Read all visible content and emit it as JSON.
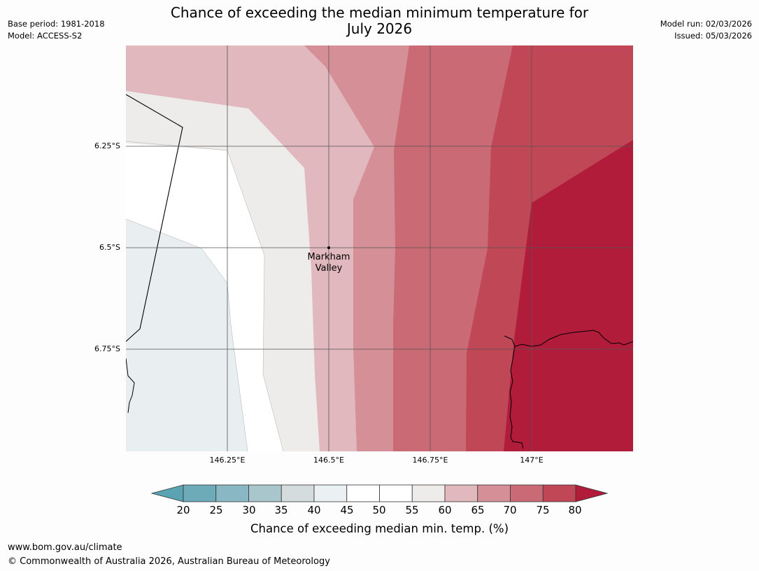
{
  "header": {
    "base_period": "Base period: 1981-2018",
    "model": "Model: ACCESS-S2",
    "title_line1": "Chance of exceeding the median minimum temperature for",
    "title_line2": "July 2026",
    "model_run": "Model run: 02/03/2026",
    "issued": "Issued: 05/03/2026"
  },
  "map": {
    "lat_labels": [
      "6.25°S",
      "6.5°S",
      "6.75°S"
    ],
    "lon_labels": [
      "146.25°E",
      "146.5°E",
      "146.75°E",
      "147°E"
    ],
    "place": {
      "line1": "Markham",
      "line2": "Valley"
    }
  },
  "colorbar": {
    "ticks": [
      "20",
      "25",
      "30",
      "35",
      "40",
      "45",
      "50",
      "55",
      "60",
      "65",
      "70",
      "75",
      "80"
    ],
    "colors": [
      "#5aa3b3",
      "#6eabb9",
      "#8ab7c4",
      "#a8c6cc",
      "#d5dcdd",
      "#ebf0f2",
      "#ffffff",
      "#ffffff",
      "#eeeceb",
      "#e0b8bd",
      "#d58f97",
      "#c96a74",
      "#bf4756",
      "#b01c39"
    ],
    "label": "Chance of exceeding median min. temp. (%)"
  },
  "footer": {
    "url": "www.bom.gov.au/climate",
    "copyright": "© Commonwealth of Australia 2026, Australian Bureau of Meteorology"
  }
}
